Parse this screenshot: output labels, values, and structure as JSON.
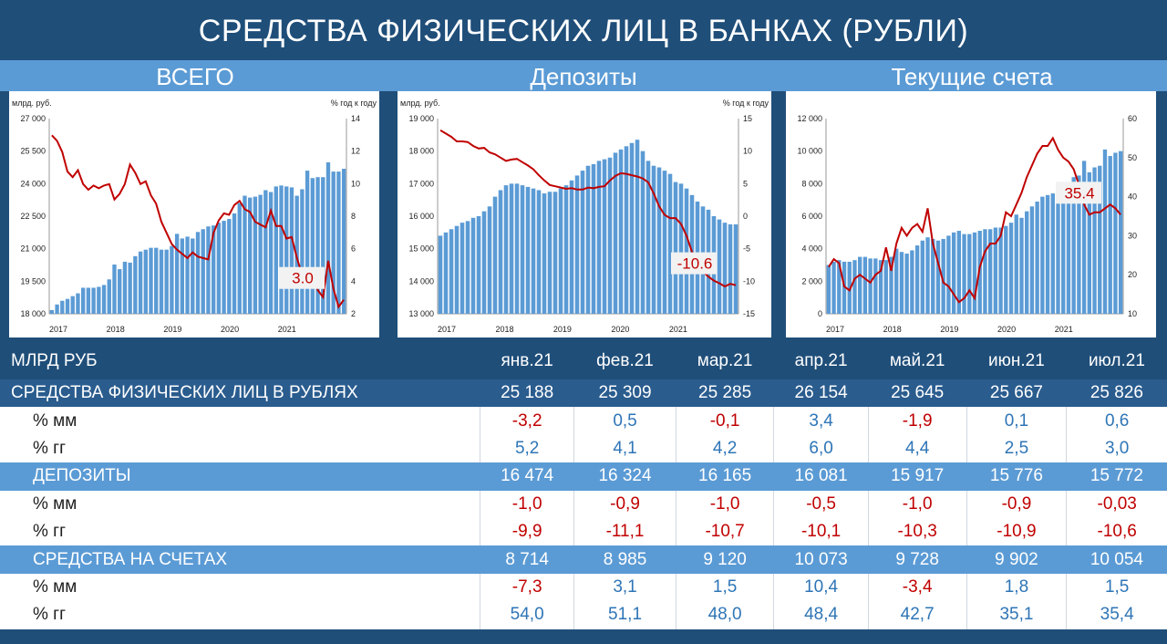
{
  "page_title": "СРЕДСТВА ФИЗИЧЕСКИХ ЛИЦ В БАНКАХ (РУБЛИ)",
  "sections": [
    "ВСЕГО",
    "Депозиты",
    "Текущие счета"
  ],
  "colors": {
    "bars": "#5b9bd5",
    "line": "#c00000",
    "navy": "#1f4e79",
    "mid": "#5b9bd5",
    "positive": "#2e75b6",
    "negative": "#c00000"
  },
  "chart_data": [
    {
      "type": "bar",
      "ylabel_left": "млрд. руб.",
      "ylabel_right": "% год к году",
      "x_labels": [
        "2017",
        "2018",
        "2019",
        "2020",
        "2021"
      ],
      "ylim_left": [
        18000,
        28500
      ],
      "ylim_right": [
        2,
        16
      ],
      "left_ticks": [
        "18 000",
        "19 500",
        "21 000",
        "22 500",
        "24 000",
        "25 500",
        "27 000"
      ],
      "right_ticks": [
        "2",
        "4",
        "6",
        "8",
        "10",
        "12",
        "14"
      ],
      "annotation": "3.0",
      "bars": [
        18200,
        18500,
        18700,
        18800,
        18950,
        19100,
        19400,
        19400,
        19400,
        19450,
        19550,
        19850,
        20650,
        20400,
        20800,
        20750,
        21100,
        21350,
        21450,
        21550,
        21550,
        21450,
        21450,
        21650,
        22300,
        22050,
        22150,
        22050,
        22400,
        22550,
        22700,
        22750,
        22900,
        23000,
        23100,
        23400,
        23950,
        24350,
        24250,
        24300,
        24400,
        24650,
        24550,
        24850,
        24900,
        24850,
        24800,
        24350,
        24700,
        25700,
        25300,
        25350,
        25350,
        26150,
        25650,
        25650,
        25800
      ],
      "line": [
        14.8,
        14.4,
        13.6,
        12.2,
        11.8,
        12.3,
        11.3,
        10.9,
        11.2,
        11.0,
        11.2,
        11.3,
        10.2,
        10.6,
        11.3,
        12.7,
        12.1,
        11.3,
        11.5,
        10.5,
        9.9,
        8.6,
        7.8,
        7.0,
        6.6,
        6.3,
        6.0,
        6.4,
        6.1,
        6.0,
        5.9,
        7.8,
        8.7,
        9.2,
        9.1,
        9.8,
        10.1,
        9.5,
        9.3,
        8.6,
        8.4,
        8.2,
        9.4,
        8.3,
        8.3,
        7.4,
        7.5,
        6.0,
        4.8,
        4.3,
        5.0,
        3.7,
        3.2,
        5.8,
        3.8,
        2.5,
        3.0
      ]
    },
    {
      "type": "bar",
      "ylabel_left": "млрд. руб.",
      "ylabel_right": "% год к году",
      "x_labels": [
        "2017",
        "2018",
        "2019",
        "2020",
        "2021"
      ],
      "ylim_left": [
        13000,
        19000
      ],
      "ylim_right": [
        -15,
        15
      ],
      "left_ticks": [
        "13 000",
        "14 000",
        "15 000",
        "16 000",
        "17 000",
        "18 000",
        "19 000"
      ],
      "right_ticks": [
        "-15",
        "-10",
        "-5",
        "0",
        "5",
        "10",
        "15"
      ],
      "annotation": "-10.6",
      "bars": [
        15400,
        15500,
        15600,
        15700,
        15800,
        15850,
        15950,
        16000,
        16150,
        16300,
        16600,
        16800,
        16950,
        17000,
        17000,
        16950,
        16900,
        16850,
        16800,
        16700,
        16750,
        16750,
        16850,
        16950,
        17100,
        17250,
        17400,
        17550,
        17600,
        17700,
        17750,
        17800,
        17950,
        18050,
        18150,
        18250,
        18350,
        18000,
        17700,
        17550,
        17500,
        17400,
        17300,
        17050,
        17000,
        16850,
        16650,
        16450,
        16300,
        16200,
        16000,
        15900,
        15800,
        15750,
        15750
      ],
      "line": [
        13.2,
        12.7,
        12.2,
        11.5,
        11.5,
        11.4,
        10.8,
        10.4,
        10.5,
        9.8,
        9.5,
        9.0,
        8.5,
        8.7,
        8.8,
        8.3,
        7.8,
        7.2,
        6.3,
        5.5,
        4.8,
        4.6,
        4.4,
        4.2,
        4.3,
        4.1,
        4.1,
        4.4,
        4.3,
        4.5,
        4.6,
        5.5,
        6.2,
        6.6,
        6.5,
        6.3,
        6.1,
        5.8,
        5.2,
        3.5,
        1.5,
        0.2,
        -0.3,
        -0.3,
        -1.2,
        -3.0,
        -5.5,
        -7.0,
        -8.5,
        -9.3,
        -9.9,
        -10.3,
        -10.8,
        -10.4,
        -10.6
      ]
    },
    {
      "type": "bar",
      "x_labels": [
        "2017",
        "2018",
        "2019",
        "2020",
        "2021"
      ],
      "ylim_left": [
        0,
        12000
      ],
      "ylim_right": [
        10,
        60
      ],
      "left_ticks": [
        "0",
        "2 000",
        "4 000",
        "6 000",
        "8 000",
        "10 000",
        "12 000"
      ],
      "right_ticks": [
        "10",
        "20",
        "30",
        "40",
        "50",
        "60"
      ],
      "annotation": "35.4",
      "bars": [
        3000,
        3200,
        3300,
        3200,
        3200,
        3300,
        3500,
        3500,
        3400,
        3400,
        3300,
        3300,
        3500,
        4000,
        3800,
        3700,
        3900,
        4200,
        4500,
        4700,
        4600,
        4500,
        4600,
        4800,
        5000,
        5100,
        4900,
        4900,
        5000,
        5100,
        5200,
        5200,
        5300,
        5300,
        5400,
        5600,
        6100,
        5900,
        6300,
        6600,
        6900,
        7200,
        7300,
        7400,
        7500,
        7800,
        8100,
        8400,
        8500,
        9400,
        8700,
        9000,
        9100,
        10100,
        9700,
        9900,
        10000
      ],
      "line": [
        22,
        24,
        23,
        17,
        16,
        19,
        20,
        19,
        18,
        20,
        21,
        27,
        21,
        28,
        32,
        30,
        32,
        33,
        31,
        37,
        28,
        23,
        18,
        17,
        15,
        13,
        14,
        16,
        14,
        22,
        26,
        28,
        28,
        30,
        36,
        35,
        38,
        41,
        45,
        48,
        51,
        53,
        53,
        55,
        52,
        50,
        49,
        47,
        43,
        38,
        35.4,
        36,
        36,
        37,
        38,
        37,
        35.4
      ]
    }
  ],
  "table": {
    "header": "МЛРД РУБ",
    "months": [
      "янв.21",
      "фев.21",
      "мар.21",
      "апр.21",
      "май.21",
      "июн.21",
      "июл.21"
    ],
    "rows": [
      {
        "label": "СРЕДСТВА ФИЗИЧЕСКИХ ЛИЦ В РУБЛЯХ",
        "style": "dark",
        "values": [
          "25 188",
          "25 309",
          "25 285",
          "26 154",
          "25 645",
          "25 667",
          "25 826"
        ]
      },
      {
        "label": "% мм",
        "style": "white",
        "values": [
          "-3,2",
          "0,5",
          "-0,1",
          "3,4",
          "-1,9",
          "0,1",
          "0,6"
        ]
      },
      {
        "label": "% гг",
        "style": "white",
        "values": [
          "5,2",
          "4,1",
          "4,2",
          "6,0",
          "4,4",
          "2,5",
          "3,0"
        ]
      },
      {
        "label": "ДЕПОЗИТЫ",
        "style": "mid",
        "values": [
          "16 474",
          "16 324",
          "16 165",
          "16 081",
          "15 917",
          "15 776",
          "15 772"
        ]
      },
      {
        "label": "% мм",
        "style": "white",
        "values": [
          "-1,0",
          "-0,9",
          "-1,0",
          "-0,5",
          "-1,0",
          "-0,9",
          "-0,03"
        ]
      },
      {
        "label": "% гг",
        "style": "white",
        "values": [
          "-9,9",
          "-11,1",
          "-10,7",
          "-10,1",
          "-10,3",
          "-10,9",
          "-10,6"
        ]
      },
      {
        "label": "СРЕДСТВА НА СЧЕТАХ",
        "style": "mid",
        "values": [
          "8 714",
          "8 985",
          "9 120",
          "10 073",
          "9 728",
          "9 902",
          "10 054"
        ]
      },
      {
        "label": "% мм",
        "style": "white",
        "values": [
          "-7,3",
          "3,1",
          "1,5",
          "10,4",
          "-3,4",
          "1,8",
          "1,5"
        ]
      },
      {
        "label": "% гг",
        "style": "white",
        "values": [
          "54,0",
          "51,1",
          "48,0",
          "48,4",
          "42,7",
          "35,1",
          "35,4"
        ]
      }
    ]
  }
}
